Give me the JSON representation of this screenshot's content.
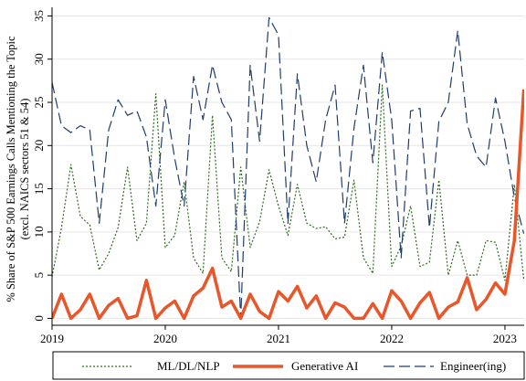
{
  "chart_data": {
    "type": "line",
    "title": "",
    "xlabel": "",
    "ylabel": "% Share of S&P 500 Earnings Calls Mentioning the Topic",
    "ylabel_line2": "(excl. NAICS sectors 51 & 54)",
    "xlim": [
      2019.0,
      2023.17
    ],
    "ylim": [
      -0.8,
      36
    ],
    "x_ticks": [
      2019,
      2020,
      2021,
      2022,
      2023
    ],
    "x_tick_labels": [
      "2019",
      "2020",
      "2021",
      "2022",
      "2023"
    ],
    "y_ticks": [
      0,
      5,
      10,
      15,
      20,
      25,
      30,
      35
    ],
    "y_tick_labels": [
      "0",
      "5",
      "10",
      "15",
      "20",
      "25",
      "30",
      "35"
    ],
    "grid": "horizontal",
    "legend_position": "bottom",
    "start_month": "2019-01",
    "series": [
      {
        "name": "ML/DL/NLP",
        "color": "#2e6b1e",
        "style": "dotted",
        "values": [
          4.8,
          10.5,
          17.8,
          11.8,
          10.8,
          5.6,
          7.5,
          10.5,
          17.5,
          9.0,
          11.0,
          26.0,
          8.2,
          9.6,
          15.8,
          7.0,
          5.2,
          23.5,
          7.0,
          5.4,
          17.5,
          8.2,
          11.2,
          17.2,
          13.0,
          9.6,
          15.5,
          11.0,
          10.4,
          10.6,
          9.2,
          9.4,
          16.0,
          7.0,
          5.2,
          27.0,
          6.0,
          8.4,
          13.0,
          6.0,
          6.5,
          16.0,
          5.0,
          9.0,
          5.0,
          5.0,
          9.0,
          8.8,
          4.4,
          15.5,
          4.4
        ]
      },
      {
        "name": "Generative AI",
        "color": "#e8562a",
        "style": "solid",
        "values": [
          0.0,
          2.8,
          0.0,
          1.0,
          2.8,
          0.0,
          1.5,
          2.3,
          0.0,
          0.3,
          4.4,
          0.0,
          1.2,
          2.0,
          0.0,
          2.6,
          3.5,
          5.8,
          1.3,
          2.0,
          0.0,
          2.8,
          0.8,
          0.0,
          3.1,
          2.0,
          3.7,
          1.2,
          2.6,
          0.0,
          1.8,
          1.3,
          0.0,
          0.0,
          1.7,
          0.0,
          3.2,
          2.0,
          0.0,
          1.8,
          3.0,
          0.0,
          1.3,
          1.9,
          4.7,
          1.0,
          2.2,
          4.1,
          2.8,
          9.0,
          26.5
        ]
      },
      {
        "name": "Engineer(ing)",
        "color": "#1f3d6b",
        "style": "dashed",
        "values": [
          27.3,
          22.3,
          21.5,
          22.3,
          21.8,
          11.0,
          21.8,
          25.3,
          23.5,
          24.0,
          21.0,
          13.0,
          25.3,
          18.5,
          13.0,
          28.0,
          23.0,
          29.3,
          25.0,
          23.0,
          0.0,
          29.3,
          20.5,
          34.8,
          32.8,
          11.0,
          28.3,
          20.0,
          15.8,
          23.0,
          27.0,
          11.0,
          22.0,
          29.3,
          18.0,
          30.8,
          23.0,
          7.0,
          24.0,
          24.3,
          10.5,
          22.8,
          25.0,
          33.3,
          22.5,
          18.8,
          17.5,
          25.5,
          20.5,
          14.0,
          9.8
        ]
      }
    ]
  }
}
